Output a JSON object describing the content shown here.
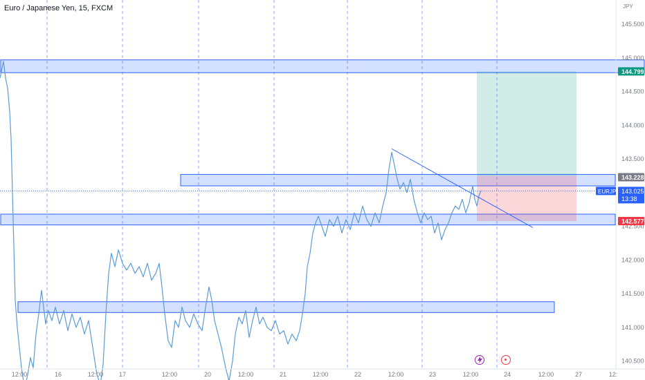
{
  "header": {
    "symbol_title": "Euro / Japanese Yen, 15, FXCM"
  },
  "price_axis": {
    "currency": "JPY",
    "ticks": [
      "145.500",
      "145.000",
      "144.500",
      "144.000",
      "143.500",
      "143.000",
      "142.500",
      "142.000",
      "141.500",
      "141.000",
      "140.500"
    ],
    "tick_values": [
      145.5,
      145.0,
      144.5,
      144.0,
      143.5,
      143.0,
      142.5,
      142.0,
      141.5,
      141.0,
      140.5
    ],
    "labels": [
      {
        "text": "144.799",
        "value": 144.799,
        "color": "#089981"
      },
      {
        "text": "143.228",
        "value": 143.228,
        "color": "#787b86"
      },
      {
        "text": "142.577",
        "value": 142.577,
        "color": "#f23645"
      }
    ],
    "current": {
      "symbol": "EURJPY",
      "price": "143.025",
      "countdown": "13:38",
      "value": 143.025,
      "color": "#2962ff"
    }
  },
  "time_axis": {
    "labels": [
      "12:00",
      "16",
      "12:00",
      "17",
      "12:00",
      "20",
      "12:00",
      "21",
      "12:00",
      "22",
      "12:00",
      "23",
      "12:00",
      "24",
      "12:00",
      "27",
      "12:"
    ]
  },
  "events": [
    {
      "name": "flash-icon",
      "color": "#9c27b0"
    },
    {
      "name": "target-icon",
      "color": "#f23645"
    }
  ],
  "chart_data": {
    "type": "line",
    "title": "Euro / Japanese Yen, 15, FXCM",
    "ylabel": "JPY",
    "ylim": [
      140.1,
      145.85
    ],
    "line_color": "#5b9bd5",
    "series": [
      {
        "name": "EURJPY",
        "points": [
          [
            0,
            144.7
          ],
          [
            3,
            144.85
          ],
          [
            5,
            144.95
          ],
          [
            8,
            144.7
          ],
          [
            11,
            144.55
          ],
          [
            14,
            144.2
          ],
          [
            16,
            143.8
          ],
          [
            18,
            143.0
          ],
          [
            20,
            142.2
          ],
          [
            22,
            141.4
          ],
          [
            25,
            141.0
          ],
          [
            28,
            140.7
          ],
          [
            31,
            140.4
          ],
          [
            34,
            140.2
          ],
          [
            37,
            140.15
          ],
          [
            40,
            140.3
          ],
          [
            44,
            140.55
          ],
          [
            48,
            140.4
          ],
          [
            52,
            140.9
          ],
          [
            56,
            141.2
          ],
          [
            60,
            141.55
          ],
          [
            63,
            141.3
          ],
          [
            66,
            141.05
          ],
          [
            70,
            141.25
          ],
          [
            75,
            141.1
          ],
          [
            80,
            141.3
          ],
          [
            86,
            141.05
          ],
          [
            92,
            141.25
          ],
          [
            98,
            140.95
          ],
          [
            104,
            141.2
          ],
          [
            110,
            141.0
          ],
          [
            116,
            141.15
          ],
          [
            122,
            140.9
          ],
          [
            128,
            141.1
          ],
          [
            134,
            140.7
          ],
          [
            140,
            140.3
          ],
          [
            145,
            140.15
          ],
          [
            149,
            140.45
          ],
          [
            153,
            141.2
          ],
          [
            157,
            141.8
          ],
          [
            161,
            142.1
          ],
          [
            166,
            141.9
          ],
          [
            171,
            142.15
          ],
          [
            177,
            141.95
          ],
          [
            183,
            141.85
          ],
          [
            189,
            141.95
          ],
          [
            195,
            141.8
          ],
          [
            201,
            141.9
          ],
          [
            207,
            141.75
          ],
          [
            213,
            141.95
          ],
          [
            219,
            141.7
          ],
          [
            225,
            141.8
          ],
          [
            230,
            141.95
          ],
          [
            234,
            141.6
          ],
          [
            238,
            141.2
          ],
          [
            243,
            140.8
          ],
          [
            248,
            140.7
          ],
          [
            253,
            141.1
          ],
          [
            258,
            141.0
          ],
          [
            263,
            141.3
          ],
          [
            268,
            141.1
          ],
          [
            274,
            141.0
          ],
          [
            280,
            141.2
          ],
          [
            286,
            141.05
          ],
          [
            292,
            140.95
          ],
          [
            297,
            141.3
          ],
          [
            302,
            141.6
          ],
          [
            306,
            141.4
          ],
          [
            310,
            141.1
          ],
          [
            315,
            140.9
          ],
          [
            320,
            140.7
          ],
          [
            326,
            140.4
          ],
          [
            331,
            140.2
          ],
          [
            336,
            140.5
          ],
          [
            340,
            140.9
          ],
          [
            345,
            141.15
          ],
          [
            350,
            141.05
          ],
          [
            355,
            141.25
          ],
          [
            360,
            140.85
          ],
          [
            365,
            141.1
          ],
          [
            370,
            141.3
          ],
          [
            375,
            141.05
          ],
          [
            380,
            141.15
          ],
          [
            386,
            141.0
          ],
          [
            392,
            140.95
          ],
          [
            398,
            141.1
          ],
          [
            404,
            140.9
          ],
          [
            410,
            140.95
          ],
          [
            416,
            140.75
          ],
          [
            422,
            140.9
          ],
          [
            428,
            140.8
          ],
          [
            433,
            140.95
          ],
          [
            437,
            141.2
          ],
          [
            441,
            141.5
          ],
          [
            444,
            141.9
          ],
          [
            448,
            142.1
          ],
          [
            452,
            142.4
          ],
          [
            456,
            142.55
          ],
          [
            460,
            142.65
          ],
          [
            465,
            142.5
          ],
          [
            470,
            142.35
          ],
          [
            476,
            142.6
          ],
          [
            482,
            142.5
          ],
          [
            488,
            142.65
          ],
          [
            494,
            142.4
          ],
          [
            500,
            142.6
          ],
          [
            506,
            142.45
          ],
          [
            512,
            142.7
          ],
          [
            518,
            142.55
          ],
          [
            524,
            142.8
          ],
          [
            530,
            142.6
          ],
          [
            536,
            142.5
          ],
          [
            542,
            142.7
          ],
          [
            548,
            142.55
          ],
          [
            553,
            142.8
          ],
          [
            558,
            143.0
          ],
          [
            562,
            143.35
          ],
          [
            566,
            143.6
          ],
          [
            570,
            143.4
          ],
          [
            574,
            143.2
          ],
          [
            578,
            143.05
          ],
          [
            583,
            143.15
          ],
          [
            588,
            143.0
          ],
          [
            593,
            143.2
          ],
          [
            598,
            142.9
          ],
          [
            603,
            142.7
          ],
          [
            608,
            142.55
          ],
          [
            613,
            142.7
          ],
          [
            618,
            142.6
          ],
          [
            623,
            142.65
          ],
          [
            628,
            142.4
          ],
          [
            633,
            142.55
          ],
          [
            638,
            142.3
          ],
          [
            643,
            142.45
          ],
          [
            648,
            142.55
          ],
          [
            653,
            142.7
          ],
          [
            658,
            142.8
          ],
          [
            663,
            142.75
          ],
          [
            668,
            142.9
          ],
          [
            673,
            142.7
          ],
          [
            678,
            142.85
          ],
          [
            683,
            143.1
          ],
          [
            686,
            142.9
          ],
          [
            689,
            142.8
          ],
          [
            692,
            142.95
          ],
          [
            695,
            143.025
          ]
        ]
      }
    ],
    "zones": [
      {
        "name": "supply-zone-top",
        "from": 0,
        "to": 932,
        "low": 144.78,
        "high": 144.97
      },
      {
        "name": "resistance-zone-mid",
        "from": 260,
        "to": 890,
        "low": 143.1,
        "high": 143.27
      },
      {
        "name": "support-zone-142-6",
        "from": 0,
        "to": 890,
        "low": 142.52,
        "high": 142.68
      },
      {
        "name": "demand-zone-141-3",
        "from": 25,
        "to": 802,
        "low": 141.22,
        "high": 141.38
      }
    ],
    "position": {
      "entry": 143.25,
      "target": 144.799,
      "stop": 142.577,
      "target_color": "#089981",
      "stop_color": "#f23645"
    },
    "trendline": {
      "from": [
        566,
        143.65
      ],
      "to": [
        770,
        142.48
      ]
    },
    "grid": "vertical-dashed"
  }
}
